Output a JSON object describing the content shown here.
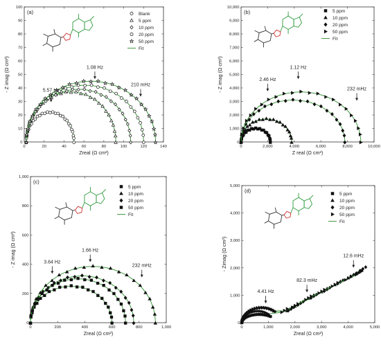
{
  "panel_labels": [
    "(a)",
    "(b)",
    "(c)",
    "(d)"
  ],
  "colors": {
    "fit": "#2f8f2f",
    "markers": "#111111",
    "molecule_ring": "#2e9a3e",
    "triazole": "#d03030"
  },
  "chart_data": [
    {
      "type": "scatter",
      "panel": "(a)",
      "xlabel": "Zreal (Ω cm²)",
      "ylabel": "- Z imag (Ω cm²)",
      "xlim": [
        0,
        140
      ],
      "ylim": [
        0,
        100
      ],
      "xticks": [
        "0",
        "20",
        "40",
        "60",
        "80",
        "100",
        "120",
        "140"
      ],
      "yticks": [
        "0",
        "10",
        "20",
        "30",
        "40",
        "50",
        "60",
        "70",
        "80",
        "90",
        "100"
      ],
      "legend": [
        "Blank",
        "5 ppm",
        "10 ppm",
        "20 ppm",
        "50 ppm",
        "Fit"
      ],
      "annotations": [
        {
          "text": "5.57 Hz",
          "x": 27,
          "y": 29
        },
        {
          "text": "1.08 Hz",
          "x": 71,
          "y": 46
        },
        {
          "text": "210 mHz",
          "x": 117,
          "y": 33
        }
      ],
      "series": [
        {
          "name": "Blank",
          "marker": "circle-open",
          "rmin": 2,
          "rmax": 50,
          "height": 22
        },
        {
          "name": "5 ppm",
          "marker": "triangle-open",
          "rmin": 2,
          "rmax": 92,
          "height": 37
        },
        {
          "name": "10 ppm",
          "marker": "diamond-open",
          "rmin": 2,
          "rmax": 107,
          "height": 39
        },
        {
          "name": "20 ppm",
          "marker": "circle-open",
          "rmin": 2,
          "rmax": 120,
          "height": 42
        },
        {
          "name": "50 ppm",
          "marker": "star-open",
          "rmin": 2,
          "rmax": 132,
          "height": 45
        }
      ]
    },
    {
      "type": "scatter",
      "panel": "(b)",
      "xlabel": "Z real (Ω cm²)",
      "ylabel": "- Z imag (Ω cm²)",
      "xlim": [
        0,
        10000
      ],
      "ylim": [
        0,
        10000
      ],
      "xticks": [
        "0",
        "2,000",
        "4,000",
        "6,000",
        "8,000",
        "10,000"
      ],
      "yticks": [
        "0",
        "1,000",
        "2,000",
        "3,000",
        "4,000",
        "5,000",
        "6,000",
        "7,000",
        "8,000",
        "9,000",
        "10,000"
      ],
      "legend": [
        "5 ppm",
        "10 ppm",
        "20 ppm",
        "50 ppm",
        "Fit"
      ],
      "annotations": [
        {
          "text": "2.46 Hz",
          "x": 2000,
          "y": 3700
        },
        {
          "text": "1.12 Hz",
          "x": 4300,
          "y": 4600
        },
        {
          "text": "232 mHz",
          "x": 8700,
          "y": 3000
        }
      ],
      "series": [
        {
          "name": "5 ppm",
          "marker": "square",
          "rmin": 0,
          "rmax": 2200,
          "height": 1000
        },
        {
          "name": "10 ppm",
          "marker": "triangle",
          "rmin": 0,
          "rmax": 3800,
          "height": 1700
        },
        {
          "name": "20 ppm",
          "marker": "diamond",
          "rmin": 0,
          "rmax": 7800,
          "height": 3100
        },
        {
          "name": "50 ppm",
          "marker": "triangle-right",
          "rmin": 0,
          "rmax": 9000,
          "height": 3700
        }
      ]
    },
    {
      "type": "scatter",
      "panel": "(c)",
      "xlabel": "Zreal (Ω cm²)",
      "ylabel": "- Z imag (Ω cm²)",
      "xlim": [
        0,
        1000
      ],
      "ylim": [
        0,
        1000
      ],
      "xticks": [
        "0",
        "200",
        "400",
        "600",
        "800",
        "1,000"
      ],
      "yticks": [
        "0",
        "200",
        "400",
        "600",
        "800",
        "1,000"
      ],
      "legend": [
        "5 ppm",
        "10 ppm",
        "20 ppm",
        "50 ppm",
        "Fit"
      ],
      "annotations": [
        {
          "text": "3.64 Hz",
          "x": 160,
          "y": 330
        },
        {
          "text": "1.66 Hz",
          "x": 440,
          "y": 410
        },
        {
          "text": "232 mHz",
          "x": 820,
          "y": 305
        }
      ],
      "series": [
        {
          "name": "5 ppm",
          "marker": "square",
          "rmin": 0,
          "rmax": 600,
          "height": 250
        },
        {
          "name": "10 ppm",
          "marker": "triangle",
          "rmin": 0,
          "rmax": 920,
          "height": 385
        },
        {
          "name": "20 ppm",
          "marker": "diamond",
          "rmin": 0,
          "rmax": 760,
          "height": 320
        },
        {
          "name": "50 ppm",
          "marker": "square-alt",
          "rmin": 0,
          "rmax": 700,
          "height": 300
        }
      ]
    },
    {
      "type": "scatter",
      "panel": "(d)",
      "xlabel": "Zreal (Ω cm²)",
      "ylabel": "- Zimag (Ω cm²)",
      "xlim": [
        0,
        5000
      ],
      "ylim": [
        0,
        5000
      ],
      "xticks": [
        "0",
        "1,000",
        "2,000",
        "3,000",
        "4,000",
        "5,000"
      ],
      "yticks": [
        "0",
        "1,000",
        "2,000",
        "3,000",
        "4,000",
        "5,000"
      ],
      "legend": [
        "5 ppm",
        "10 ppm",
        "20 ppm",
        "50 ppm",
        "Fit"
      ],
      "annotations": [
        {
          "text": "4.41 Hz",
          "x": 900,
          "y": 680
        },
        {
          "text": "82.3 mHz",
          "x": 2450,
          "y": 1080
        },
        {
          "text": "12.6 mHz",
          "x": 4200,
          "y": 1980
        }
      ],
      "series": [
        {
          "name": "5 ppm",
          "marker": "square",
          "semi_max": 1300,
          "semi_h": 300,
          "tail": []
        },
        {
          "name": "10 ppm",
          "marker": "triangle",
          "semi_max": 1450,
          "semi_h": 560,
          "tail": [
            [
              1700,
              430
            ],
            [
              2000,
              600
            ],
            [
              2500,
              880
            ],
            [
              3000,
              1120
            ],
            [
              3500,
              1380
            ],
            [
              4000,
              1630
            ],
            [
              4300,
              1780
            ]
          ]
        },
        {
          "name": "20 ppm",
          "marker": "diamond",
          "semi_max": 1500,
          "semi_h": 540,
          "tail": [
            [
              1750,
              440
            ],
            [
              2100,
              640
            ],
            [
              2600,
              900
            ],
            [
              3100,
              1150
            ],
            [
              3600,
              1420
            ],
            [
              4100,
              1680
            ],
            [
              4450,
              1900
            ]
          ]
        },
        {
          "name": "50 ppm",
          "marker": "triangle-right",
          "semi_max": 1200,
          "semi_h": 420,
          "tail": [
            [
              1500,
              380
            ],
            [
              1900,
              560
            ],
            [
              2400,
              840
            ],
            [
              2900,
              1080
            ],
            [
              3400,
              1330
            ],
            [
              3900,
              1560
            ],
            [
              4300,
              1750
            ]
          ]
        }
      ]
    }
  ]
}
